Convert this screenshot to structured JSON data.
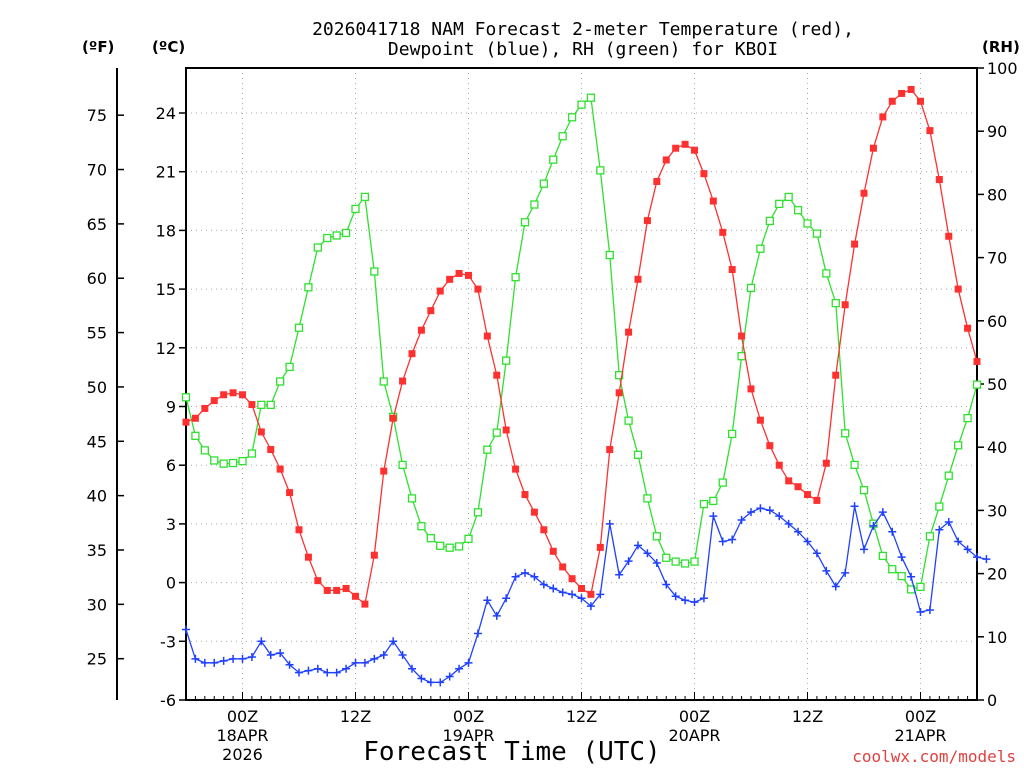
{
  "chart_data": {
    "type": "line",
    "title_line1": "2026041718 NAM Forecast 2-meter Temperature (red),",
    "title_line2": "Dewpoint (blue), RH (green) for KBOI",
    "xlabel": "Forecast Time (UTC)",
    "credit": "coolwx.com/models",
    "unit_f": "(ºF)",
    "unit_c": "(ºC)",
    "unit_rh": "(RH)",
    "x_hours_range": [
      0,
      84
    ],
    "ylim_c": [
      -6,
      26.3
    ],
    "ylim_rh": [
      0,
      100
    ],
    "yticks_c": [
      "-6",
      "-3",
      "0",
      "3",
      "6",
      "9",
      "12",
      "15",
      "18",
      "21",
      "24"
    ],
    "yticks_c_values": [
      -6,
      -3,
      0,
      3,
      6,
      9,
      12,
      15,
      18,
      21,
      24
    ],
    "yticks_f": [
      "25",
      "30",
      "35",
      "40",
      "45",
      "50",
      "55",
      "60",
      "65",
      "70",
      "75"
    ],
    "yticks_f_values": [
      25,
      30,
      35,
      40,
      45,
      50,
      55,
      60,
      65,
      70,
      75
    ],
    "yticks_rh": [
      "0",
      "10",
      "20",
      "30",
      "40",
      "50",
      "60",
      "70",
      "80",
      "90",
      "100"
    ],
    "yticks_rh_values": [
      0,
      10,
      20,
      30,
      40,
      50,
      60,
      70,
      80,
      90,
      100
    ],
    "xticks": [
      {
        "hour": 6,
        "label": "00Z",
        "date": "18APR",
        "year": "2026"
      },
      {
        "hour": 18,
        "label": "12Z",
        "date": "",
        "year": ""
      },
      {
        "hour": 30,
        "label": "00Z",
        "date": "19APR",
        "year": ""
      },
      {
        "hour": 42,
        "label": "12Z",
        "date": "",
        "year": ""
      },
      {
        "hour": 54,
        "label": "00Z",
        "date": "20APR",
        "year": ""
      },
      {
        "hour": 66,
        "label": "12Z",
        "date": "",
        "year": ""
      },
      {
        "hour": 78,
        "label": "00Z",
        "date": "21APR",
        "year": ""
      }
    ],
    "series": [
      {
        "name": "Temperature (C)",
        "color": "#ff3030",
        "marker": "filled-square",
        "axis": "c",
        "values": [
          8.2,
          8.4,
          8.9,
          9.3,
          9.6,
          9.7,
          9.6,
          9.1,
          7.7,
          6.8,
          5.8,
          4.6,
          2.7,
          1.3,
          0.1,
          -0.4,
          -0.4,
          -0.3,
          -0.7,
          -1.1,
          1.4,
          5.7,
          8.4,
          10.3,
          11.7,
          12.9,
          13.9,
          14.9,
          15.5,
          15.8,
          15.7,
          15.0,
          12.6,
          10.6,
          7.8,
          5.8,
          4.5,
          3.6,
          2.7,
          1.6,
          0.8,
          0.2,
          -0.3,
          -0.6,
          1.8,
          6.8,
          9.7,
          12.8,
          15.5,
          18.5,
          20.5,
          21.6,
          22.2,
          22.4,
          22.1,
          20.9,
          19.5,
          17.9,
          16.0,
          12.6,
          9.9,
          8.3,
          7.0,
          6.0,
          5.2,
          4.9,
          4.5,
          4.2,
          6.1,
          10.6,
          14.2,
          17.3,
          19.9,
          22.2,
          23.8,
          24.6,
          25.0,
          25.2,
          24.6,
          23.1,
          20.6,
          17.7,
          15.0,
          13.0,
          11.3
        ]
      },
      {
        "name": "Dewpoint (C)",
        "color": "#2040ff",
        "marker": "plus",
        "axis": "c",
        "values": [
          -2.4,
          -3.9,
          -4.1,
          -4.1,
          -4.0,
          -3.9,
          -3.9,
          -3.8,
          -3.0,
          -3.7,
          -3.6,
          -4.2,
          -4.6,
          -4.5,
          -4.4,
          -4.6,
          -4.6,
          -4.4,
          -4.1,
          -4.1,
          -3.9,
          -3.7,
          -3.0,
          -3.7,
          -4.4,
          -4.9,
          -5.1,
          -5.1,
          -4.8,
          -4.4,
          -4.1,
          -2.6,
          -0.9,
          -1.7,
          -0.8,
          0.3,
          0.5,
          0.3,
          -0.1,
          -0.3,
          -0.5,
          -0.6,
          -0.8,
          -1.2,
          -0.6,
          3.0,
          0.4,
          1.1,
          1.9,
          1.5,
          1.0,
          -0.1,
          -0.7,
          -0.9,
          -1.0,
          -0.8,
          3.4,
          2.1,
          2.2,
          3.2,
          3.6,
          3.8,
          3.7,
          3.4,
          3.0,
          2.6,
          2.1,
          1.5,
          0.6,
          -0.2,
          0.5,
          3.9,
          1.7,
          2.9,
          3.6,
          2.6,
          1.3,
          0.3,
          -1.5,
          -1.4,
          2.7,
          3.1,
          2.1,
          1.7,
          1.3,
          1.2
        ]
      },
      {
        "name": "RH (%)",
        "color": "#30e030",
        "marker": "open-square",
        "axis": "rh",
        "values": [
          47.9,
          41.8,
          39.5,
          37.9,
          37.4,
          37.5,
          37.8,
          39.0,
          46.7,
          46.7,
          50.4,
          52.7,
          58.9,
          65.3,
          71.6,
          73.1,
          73.5,
          73.9,
          77.7,
          79.6,
          67.8,
          50.4,
          44.8,
          37.2,
          31.9,
          27.5,
          25.6,
          24.4,
          24.1,
          24.3,
          25.5,
          29.7,
          39.6,
          42.3,
          53.7,
          66.9,
          75.6,
          78.4,
          81.7,
          85.5,
          89.2,
          92.2,
          94.2,
          95.3,
          83.8,
          70.4,
          51.4,
          44.2,
          38.8,
          31.9,
          25.9,
          22.5,
          21.9,
          21.6,
          21.9,
          31.0,
          31.5,
          34.4,
          42.1,
          54.4,
          65.2,
          71.4,
          75.8,
          78.5,
          79.6,
          77.5,
          75.4,
          73.8,
          67.5,
          62.8,
          42.2,
          37.2,
          33.2,
          27.9,
          22.8,
          20.7,
          19.6,
          17.5,
          17.9,
          25.9,
          30.6,
          35.5,
          40.3,
          44.6,
          49.9
        ]
      }
    ]
  }
}
